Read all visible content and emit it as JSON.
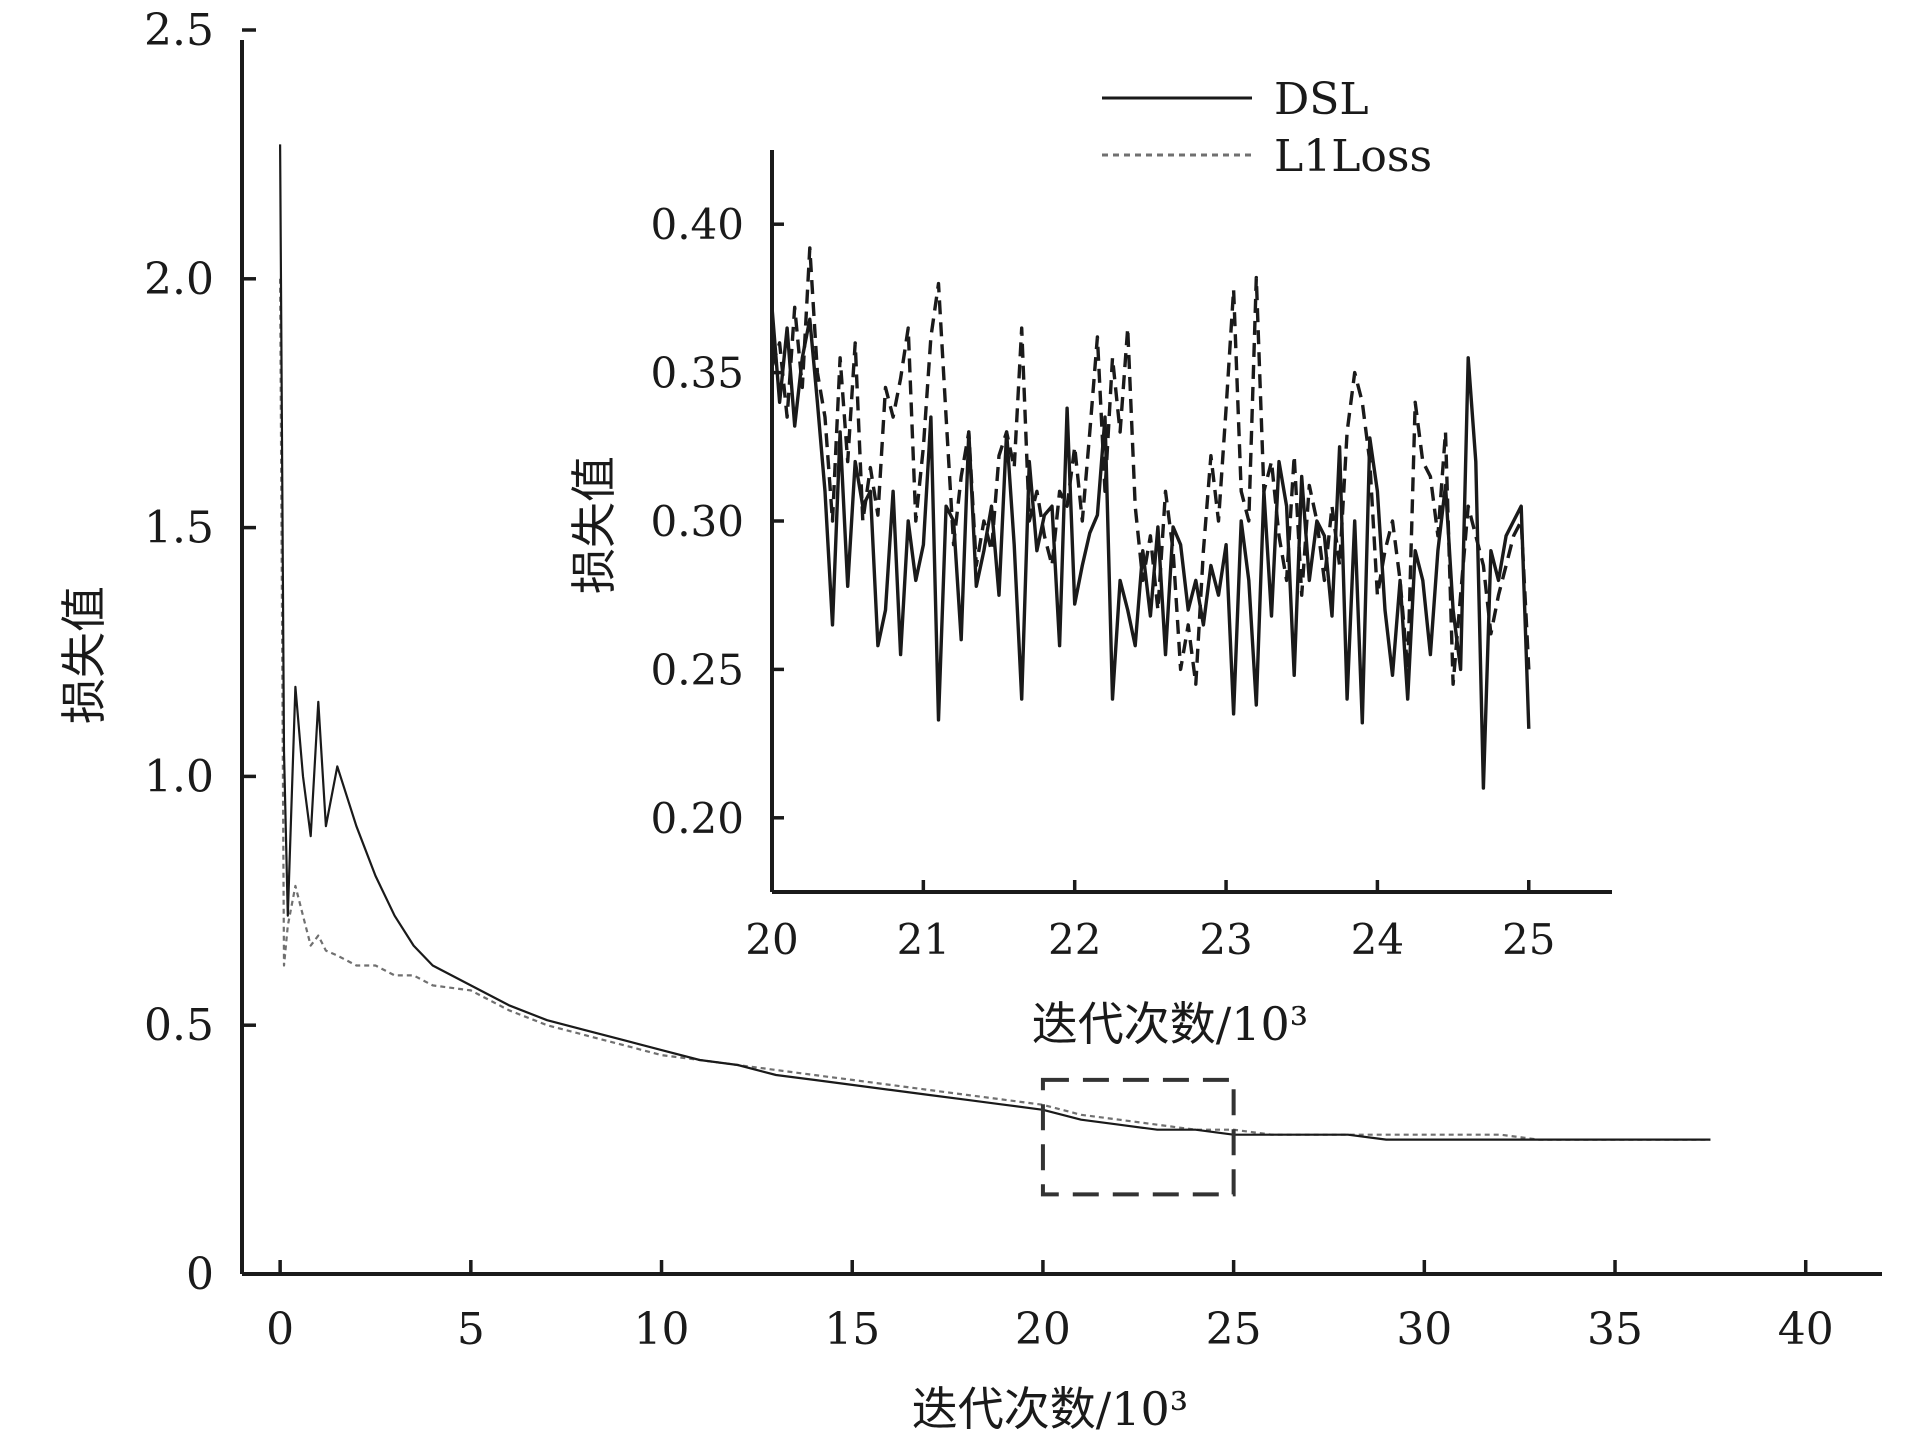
{
  "chart_data": [
    {
      "type": "line",
      "role": "main",
      "title": "",
      "xlabel": "迭代次数/10³",
      "ylabel": "损失值",
      "xlim": [
        -1,
        42
      ],
      "ylim": [
        0,
        2.5
      ],
      "xticks": [
        "0",
        "5",
        "10",
        "15",
        "20",
        "25",
        "30",
        "35",
        "40"
      ],
      "yticks": [
        "0",
        "0.5",
        "1.0",
        "1.5",
        "2.0",
        "2.5"
      ],
      "grid": false,
      "zoom_box": {
        "x": [
          20,
          25
        ],
        "y": [
          0.16,
          0.39
        ]
      },
      "series": [
        {
          "name": "DSL",
          "style": "solid",
          "color": "#1a1a1a",
          "x": [
            0,
            0.1,
            0.2,
            0.4,
            0.6,
            0.8,
            1.0,
            1.2,
            1.5,
            2.0,
            2.5,
            3,
            3.5,
            4,
            5,
            6,
            7,
            8,
            9,
            10,
            11,
            12,
            13,
            14,
            15,
            16,
            17,
            18,
            19,
            20,
            21,
            22,
            23,
            24,
            25,
            26,
            27,
            28,
            29,
            30,
            31,
            32,
            33,
            34,
            35,
            36,
            37,
            37.5
          ],
          "y": [
            2.27,
            1.05,
            0.72,
            1.18,
            1.0,
            0.88,
            1.15,
            0.9,
            1.02,
            0.9,
            0.8,
            0.72,
            0.66,
            0.62,
            0.58,
            0.54,
            0.51,
            0.49,
            0.47,
            0.45,
            0.43,
            0.42,
            0.4,
            0.39,
            0.38,
            0.37,
            0.36,
            0.35,
            0.34,
            0.33,
            0.31,
            0.3,
            0.29,
            0.29,
            0.28,
            0.28,
            0.28,
            0.28,
            0.27,
            0.27,
            0.27,
            0.27,
            0.27,
            0.27,
            0.27,
            0.27,
            0.27,
            0.27
          ]
        },
        {
          "name": "L1Loss",
          "style": "dashed",
          "color": "#707070",
          "x": [
            0,
            0.1,
            0.2,
            0.4,
            0.6,
            0.8,
            1.0,
            1.2,
            1.5,
            2.0,
            2.5,
            3,
            3.5,
            4,
            5,
            6,
            7,
            8,
            9,
            10,
            11,
            12,
            13,
            14,
            15,
            16,
            17,
            18,
            19,
            20,
            21,
            22,
            23,
            24,
            25,
            26,
            27,
            28,
            29,
            30,
            31,
            32,
            33,
            34,
            35,
            36,
            37,
            37.5
          ],
          "y": [
            2.0,
            0.62,
            0.7,
            0.78,
            0.72,
            0.66,
            0.68,
            0.65,
            0.64,
            0.62,
            0.62,
            0.6,
            0.6,
            0.58,
            0.57,
            0.53,
            0.5,
            0.48,
            0.46,
            0.44,
            0.43,
            0.42,
            0.41,
            0.4,
            0.39,
            0.38,
            0.37,
            0.36,
            0.35,
            0.34,
            0.32,
            0.31,
            0.3,
            0.29,
            0.29,
            0.28,
            0.28,
            0.28,
            0.28,
            0.28,
            0.28,
            0.28,
            0.27,
            0.27,
            0.27,
            0.27,
            0.27,
            0.27
          ]
        }
      ]
    },
    {
      "type": "line",
      "role": "inset",
      "title": "",
      "xlabel": "迭代次数/10³",
      "ylabel": "损失值",
      "xlim": [
        20,
        25.55
      ],
      "ylim": [
        0.175,
        0.425
      ],
      "xticks": [
        "20",
        "21",
        "22",
        "23",
        "24",
        "25"
      ],
      "yticks": [
        "0.20",
        "0.25",
        "0.30",
        "0.35",
        "0.40"
      ],
      "grid": false,
      "series": [
        {
          "name": "DSL",
          "style": "solid",
          "color": "#1a1a1a",
          "x": [
            20.0,
            20.05,
            20.1,
            20.15,
            20.2,
            20.25,
            20.3,
            20.35,
            20.4,
            20.45,
            20.5,
            20.55,
            20.6,
            20.65,
            20.7,
            20.75,
            20.8,
            20.85,
            20.9,
            20.95,
            21.0,
            21.05,
            21.1,
            21.15,
            21.2,
            21.25,
            21.3,
            21.35,
            21.4,
            21.45,
            21.5,
            21.55,
            21.6,
            21.65,
            21.7,
            21.75,
            21.8,
            21.85,
            21.9,
            21.95,
            22.0,
            22.05,
            22.1,
            22.15,
            22.2,
            22.25,
            22.3,
            22.35,
            22.4,
            22.45,
            22.5,
            22.55,
            22.6,
            22.65,
            22.7,
            22.75,
            22.8,
            22.85,
            22.9,
            22.95,
            23.0,
            23.05,
            23.1,
            23.15,
            23.2,
            23.25,
            23.3,
            23.35,
            23.4,
            23.45,
            23.5,
            23.55,
            23.6,
            23.65,
            23.7,
            23.75,
            23.8,
            23.85,
            23.9,
            23.95,
            24.0,
            24.05,
            24.1,
            24.15,
            24.2,
            24.25,
            24.3,
            24.35,
            24.4,
            24.45,
            24.5,
            24.55,
            24.6,
            24.65,
            24.7,
            24.75,
            24.8,
            24.85,
            24.9,
            24.95,
            25.0
          ],
          "y": [
            0.372,
            0.34,
            0.365,
            0.332,
            0.355,
            0.368,
            0.34,
            0.31,
            0.265,
            0.33,
            0.278,
            0.32,
            0.305,
            0.31,
            0.258,
            0.27,
            0.31,
            0.255,
            0.3,
            0.28,
            0.292,
            0.335,
            0.233,
            0.305,
            0.3,
            0.26,
            0.33,
            0.278,
            0.29,
            0.305,
            0.275,
            0.33,
            0.292,
            0.24,
            0.32,
            0.29,
            0.302,
            0.305,
            0.258,
            0.338,
            0.272,
            0.285,
            0.296,
            0.302,
            0.335,
            0.24,
            0.28,
            0.27,
            0.258,
            0.29,
            0.268,
            0.298,
            0.255,
            0.298,
            0.292,
            0.27,
            0.28,
            0.265,
            0.285,
            0.275,
            0.292,
            0.235,
            0.3,
            0.28,
            0.238,
            0.31,
            0.268,
            0.32,
            0.305,
            0.248,
            0.315,
            0.28,
            0.3,
            0.295,
            0.268,
            0.325,
            0.24,
            0.3,
            0.232,
            0.328,
            0.31,
            0.27,
            0.248,
            0.28,
            0.24,
            0.29,
            0.28,
            0.255,
            0.29,
            0.312,
            0.27,
            0.25,
            0.355,
            0.32,
            0.21,
            0.29,
            0.28,
            0.295,
            0.3,
            0.305,
            0.23
          ]
        },
        {
          "name": "L1Loss",
          "style": "dashed",
          "color": "#1a1a1a",
          "x": [
            20.0,
            20.05,
            20.1,
            20.15,
            20.2,
            20.25,
            20.3,
            20.35,
            20.4,
            20.45,
            20.5,
            20.55,
            20.6,
            20.65,
            20.7,
            20.75,
            20.8,
            20.85,
            20.9,
            20.95,
            21.0,
            21.05,
            21.1,
            21.15,
            21.2,
            21.25,
            21.3,
            21.35,
            21.4,
            21.45,
            21.5,
            21.55,
            21.6,
            21.65,
            21.7,
            21.75,
            21.8,
            21.85,
            21.9,
            21.95,
            22.0,
            22.05,
            22.1,
            22.15,
            22.2,
            22.25,
            22.3,
            22.35,
            22.4,
            22.45,
            22.5,
            22.55,
            22.6,
            22.65,
            22.7,
            22.75,
            22.8,
            22.85,
            22.9,
            22.95,
            23.0,
            23.05,
            23.1,
            23.15,
            23.2,
            23.25,
            23.3,
            23.35,
            23.4,
            23.45,
            23.5,
            23.55,
            23.6,
            23.65,
            23.7,
            23.75,
            23.8,
            23.85,
            23.9,
            23.95,
            24.0,
            24.05,
            24.1,
            24.15,
            24.2,
            24.25,
            24.3,
            24.35,
            24.4,
            24.45,
            24.5,
            24.55,
            24.6,
            24.65,
            24.7,
            24.75,
            24.8,
            24.85,
            24.9,
            24.95,
            25.0
          ],
          "y": [
            0.352,
            0.36,
            0.335,
            0.372,
            0.345,
            0.392,
            0.35,
            0.335,
            0.3,
            0.355,
            0.32,
            0.36,
            0.3,
            0.318,
            0.302,
            0.345,
            0.335,
            0.348,
            0.365,
            0.3,
            0.325,
            0.362,
            0.38,
            0.335,
            0.292,
            0.315,
            0.33,
            0.285,
            0.3,
            0.29,
            0.322,
            0.33,
            0.318,
            0.365,
            0.3,
            0.31,
            0.295,
            0.285,
            0.31,
            0.305,
            0.325,
            0.3,
            0.33,
            0.362,
            0.31,
            0.355,
            0.33,
            0.365,
            0.305,
            0.28,
            0.295,
            0.27,
            0.31,
            0.29,
            0.25,
            0.265,
            0.245,
            0.29,
            0.322,
            0.3,
            0.338,
            0.378,
            0.31,
            0.3,
            0.382,
            0.31,
            0.32,
            0.295,
            0.28,
            0.322,
            0.275,
            0.312,
            0.3,
            0.28,
            0.305,
            0.285,
            0.33,
            0.35,
            0.34,
            0.32,
            0.275,
            0.29,
            0.3,
            0.28,
            0.25,
            0.34,
            0.32,
            0.315,
            0.295,
            0.33,
            0.245,
            0.275,
            0.305,
            0.295,
            0.285,
            0.262,
            0.275,
            0.285,
            0.295,
            0.3,
            0.25
          ]
        }
      ]
    }
  ]
}
